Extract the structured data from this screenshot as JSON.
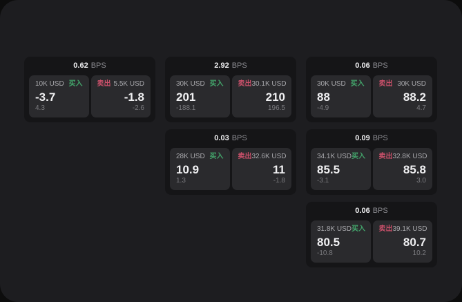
{
  "labels": {
    "buy": "买入",
    "sell": "卖出",
    "bps": "BPS"
  },
  "colors": {
    "outer-bg": "#0d0d0d",
    "panel-bg": "#1d1d20",
    "card-bg": "#151517",
    "tile-bg": "#2a2a2d",
    "buy": "#43a56b",
    "sell": "#c9506a",
    "text-primary": "#f0f0f2",
    "text-muted": "#a9a9ad",
    "text-dim": "#7a7a7e",
    "text-unit": "#8b8b90"
  },
  "cards": [
    {
      "row": 1,
      "col": 1,
      "spread": "0.62",
      "buy": {
        "amount": "10K USD",
        "price": "-3.7",
        "sub": "4.3"
      },
      "sell": {
        "amount": "5.5K USD",
        "price": "-1.8",
        "sub": "-2.6"
      }
    },
    {
      "row": 1,
      "col": 2,
      "spread": "2.92",
      "buy": {
        "amount": "30K USD",
        "price": "201",
        "sub": "-188.1"
      },
      "sell": {
        "amount": "30.1K USD",
        "price": "210",
        "sub": "196.5"
      }
    },
    {
      "row": 1,
      "col": 3,
      "spread": "0.06",
      "buy": {
        "amount": "30K USD",
        "price": "88",
        "sub": "-4.9"
      },
      "sell": {
        "amount": "30K USD",
        "price": "88.2",
        "sub": "4.7"
      }
    },
    {
      "row": 2,
      "col": 2,
      "spread": "0.03",
      "buy": {
        "amount": "28K USD",
        "price": "10.9",
        "sub": "1.3"
      },
      "sell": {
        "amount": "32.6K USD",
        "price": "11",
        "sub": "-1.8"
      }
    },
    {
      "row": 2,
      "col": 3,
      "spread": "0.09",
      "buy": {
        "amount": "34.1K USD",
        "price": "85.5",
        "sub": "-3.1"
      },
      "sell": {
        "amount": "32.8K USD",
        "price": "85.8",
        "sub": "3.0"
      }
    },
    {
      "row": 3,
      "col": 3,
      "spread": "0.06",
      "buy": {
        "amount": "31.8K USD",
        "price": "80.5",
        "sub": "-10.8"
      },
      "sell": {
        "amount": "39.1K USD",
        "price": "80.7",
        "sub": "10.2"
      }
    }
  ]
}
